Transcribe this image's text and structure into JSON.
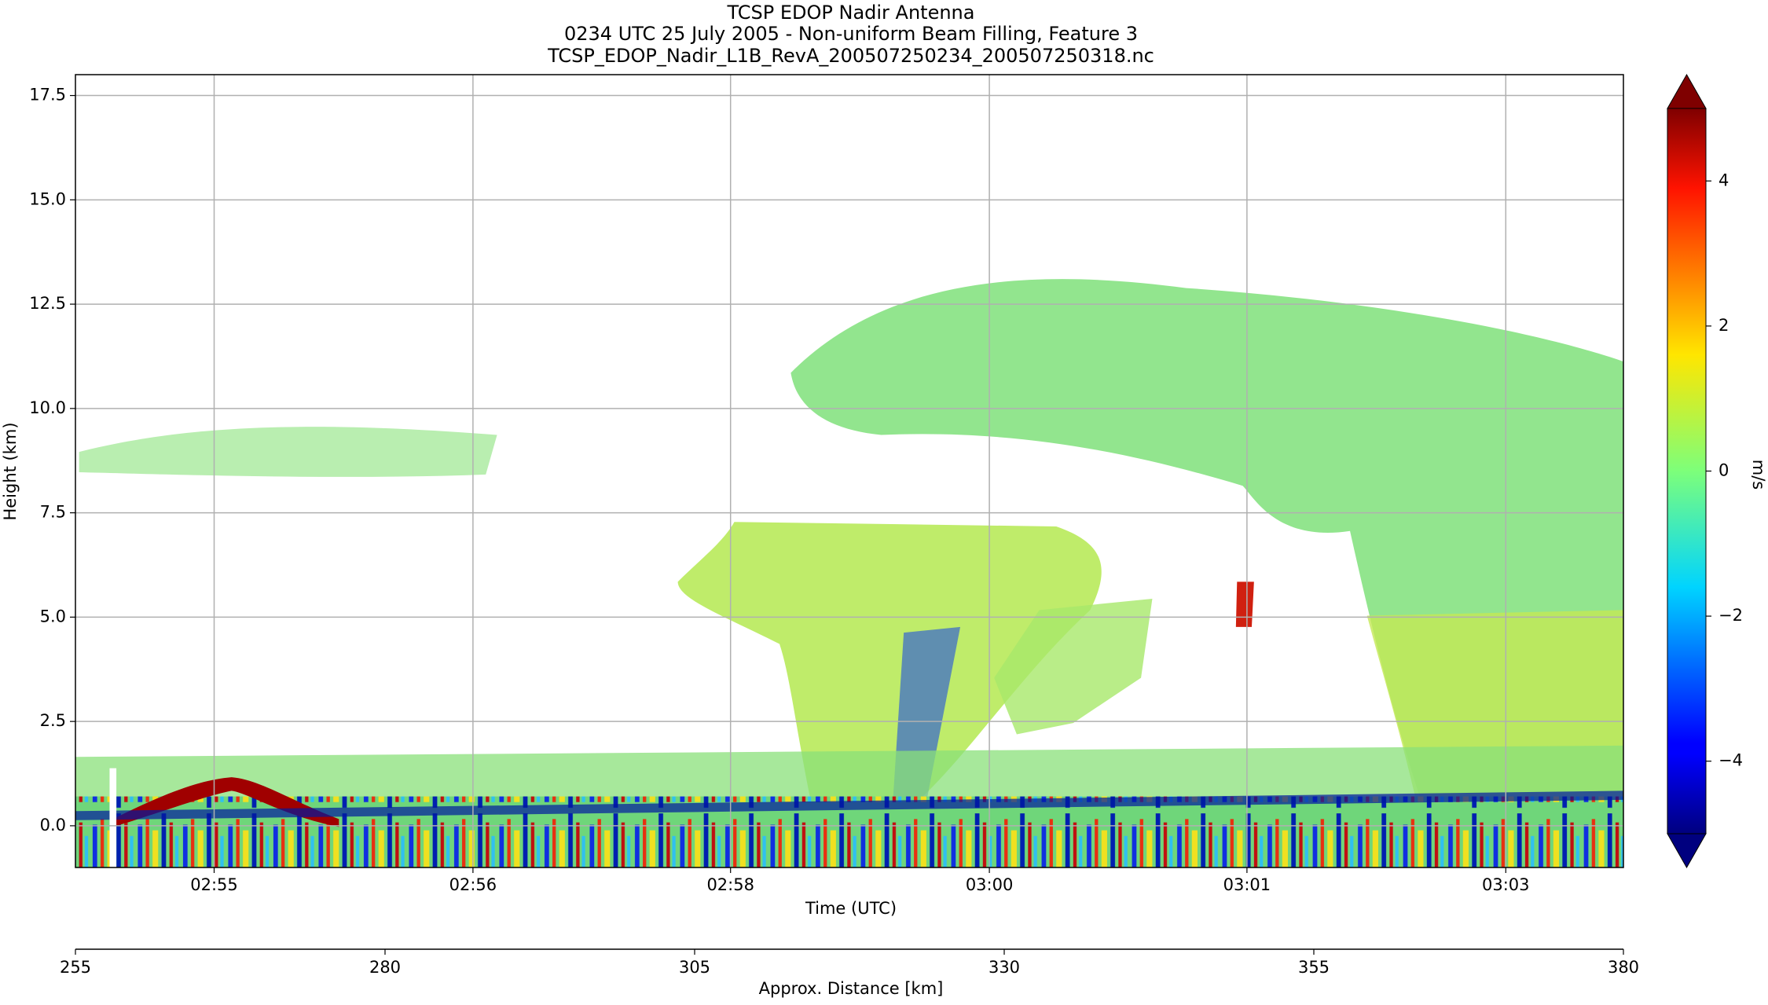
{
  "chart_data": {
    "type": "heatmap",
    "title": [
      "TCSP EDOP Nadir Antenna",
      "0234 UTC 25 July 2005 - Non-uniform Beam Filling, Feature 3",
      "TCSP_EDOP_Nadir_L1B_RevA_200507250234_200507250318.nc"
    ],
    "xlabel": "Time (UTC)",
    "ylabel": "Height (km)",
    "xlim": [
      255,
      380
    ],
    "xticks": [
      {
        "value": 266.2,
        "label": "02:55"
      },
      {
        "value": 287.1,
        "label": "02:56"
      },
      {
        "value": 307.9,
        "label": "02:58"
      },
      {
        "value": 328.8,
        "label": "03:00"
      },
      {
        "value": 349.6,
        "label": "03:01"
      },
      {
        "value": 370.5,
        "label": "03:03"
      }
    ],
    "ylim": [
      -1,
      18
    ],
    "yticks": [
      {
        "value": 0,
        "label": "0.0"
      },
      2.5,
      {
        "value": 5,
        "label": "5.0"
      },
      7.5,
      {
        "value": 10,
        "label": "10.0"
      },
      12.5,
      {
        "value": 15,
        "label": "15.0"
      },
      17.5
    ],
    "grid": true,
    "x2label": "Approx. Distance [km]",
    "x2lim": [
      255,
      380
    ],
    "x2ticks": [
      255,
      280,
      305,
      330,
      355,
      380
    ],
    "colorbar": {
      "label": "m/s",
      "lim": [
        -5,
        5
      ],
      "ticks": [
        {
          "value": -4,
          "label": "−4"
        },
        {
          "value": -2,
          "label": "−2"
        },
        0,
        2,
        4
      ],
      "extend": "both",
      "colormap": "jet"
    }
  }
}
